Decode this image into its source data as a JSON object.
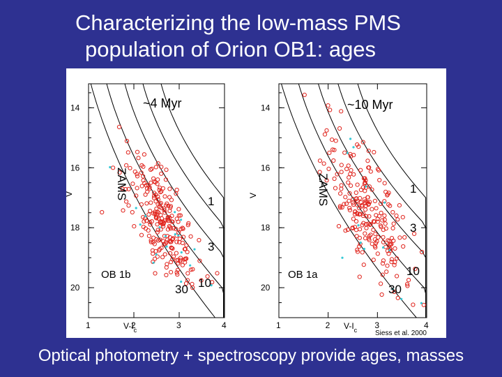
{
  "slide": {
    "title_line1": "Characterizing the low-mass PMS",
    "title_line2": "population of Orion OB1: ages",
    "caption": "Optical photometry + spectroscopy provide ages, masses"
  },
  "colors": {
    "background": "#2e3191",
    "points": "#e0231c",
    "cyan_points": "#35c9d6",
    "isochrones": "#000000"
  },
  "chart_data": [
    {
      "type": "scatter",
      "panel_label": "OB 1b",
      "age_label": "~4 Myr",
      "xlabel": "V-I",
      "xlabel_sub": "c",
      "ylabel": "V",
      "xlim": [
        1,
        4
      ],
      "ylim": [
        21,
        13.2
      ],
      "xticks": [
        "1",
        "2",
        "3",
        "4"
      ],
      "yticks": [
        "14",
        "16",
        "18",
        "20"
      ],
      "isochrone_labels": [
        "ZAMS",
        "1",
        "3",
        "10",
        "30"
      ],
      "cluster": {
        "cx": 2.6,
        "cy": 17.8,
        "sx": 0.28,
        "sy": 1.1,
        "n": 240
      },
      "cyan_n": 18
    },
    {
      "type": "scatter",
      "panel_label": "OB 1a",
      "age_label": "~10 Myr",
      "xlabel": "V-I",
      "xlabel_sub": "c",
      "ylabel": "V",
      "xlim": [
        1,
        4
      ],
      "ylim": [
        21,
        13.2
      ],
      "xticks": [
        "1",
        "2",
        "3",
        "4"
      ],
      "yticks": [
        "14",
        "16",
        "18",
        "20"
      ],
      "isochrone_labels": [
        "ZAMS",
        "1",
        "3",
        "10",
        "30"
      ],
      "cluster": {
        "cx": 2.8,
        "cy": 17.4,
        "sx": 0.3,
        "sy": 1.3,
        "n": 230
      },
      "cyan_n": 14
    }
  ],
  "credit": "Siess et al. 2000"
}
